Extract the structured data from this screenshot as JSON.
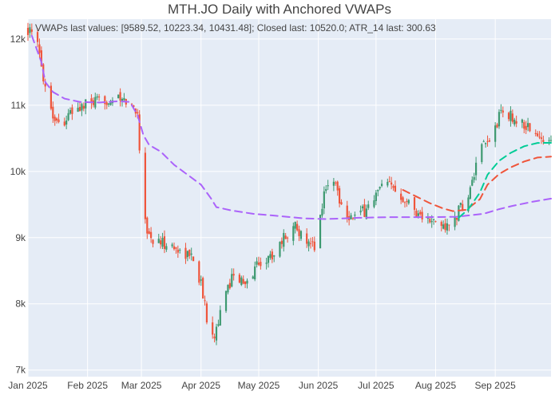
{
  "chart_data": {
    "type": "candlestick",
    "title": "MTH.JO Daily with Anchored VWAPs",
    "annotation": "VWAPs last values: [9589.52, 10223.34, 10431.48]; Closed last: 10520.0; ATR_14 last: 300.63",
    "xlabel": "",
    "ylabel": "",
    "x_range": [
      "2025-01-01",
      "2025-09-30"
    ],
    "y_range": [
      6900,
      12300
    ],
    "y_ticks": [
      {
        "value": 7000,
        "label": "7k"
      },
      {
        "value": 8000,
        "label": "8k"
      },
      {
        "value": 9000,
        "label": "9k"
      },
      {
        "value": 10000,
        "label": "10k"
      },
      {
        "value": 11000,
        "label": "11k"
      },
      {
        "value": 12000,
        "label": "12k"
      }
    ],
    "x_ticks": [
      {
        "date": "2025-01-01",
        "label": "Jan 2025"
      },
      {
        "date": "2025-02-01",
        "label": "Feb 2025"
      },
      {
        "date": "2025-03-01",
        "label": "Mar 2025"
      },
      {
        "date": "2025-04-01",
        "label": "Apr 2025"
      },
      {
        "date": "2025-05-01",
        "label": "May 2025"
      },
      {
        "date": "2025-06-01",
        "label": "Jun 2025"
      },
      {
        "date": "2025-07-01",
        "label": "Jul 2025"
      },
      {
        "date": "2025-08-01",
        "label": "Aug 2025"
      },
      {
        "date": "2025-09-01",
        "label": "Sep 2025"
      }
    ],
    "grid": true,
    "legend": "none",
    "colors": {
      "increasing": "#3D9970",
      "decreasing": "#EF553B",
      "plot_bg": "#E5ECF6",
      "grid": "#FFFFFF",
      "vwap_1": "#AB63FA",
      "vwap_2": "#EF553B",
      "vwap_3": "#00CC96"
    },
    "close_points": [
      [
        "2025-01-01",
        12150
      ],
      [
        "2025-01-06",
        11900
      ],
      [
        "2025-01-10",
        11300
      ],
      [
        "2025-01-14",
        10850
      ],
      [
        "2025-01-18",
        10700
      ],
      [
        "2025-01-24",
        10900
      ],
      [
        "2025-01-31",
        11000
      ],
      [
        "2025-02-07",
        11050
      ],
      [
        "2025-02-14",
        11100
      ],
      [
        "2025-02-21",
        11050
      ],
      [
        "2025-02-27",
        10900
      ],
      [
        "2025-03-01",
        9800
      ],
      [
        "2025-03-04",
        9100
      ],
      [
        "2025-03-07",
        8950
      ],
      [
        "2025-03-14",
        8900
      ],
      [
        "2025-03-21",
        8800
      ],
      [
        "2025-03-28",
        8700
      ],
      [
        "2025-04-01",
        8300
      ],
      [
        "2025-04-04",
        7800
      ],
      [
        "2025-04-08",
        7550
      ],
      [
        "2025-04-12",
        7950
      ],
      [
        "2025-04-18",
        8500
      ],
      [
        "2025-04-24",
        8250
      ],
      [
        "2025-04-30",
        8600
      ],
      [
        "2025-05-07",
        8700
      ],
      [
        "2025-05-14",
        9000
      ],
      [
        "2025-05-21",
        9200
      ],
      [
        "2025-05-25",
        8850
      ],
      [
        "2025-05-31",
        8900
      ],
      [
        "2025-06-04",
        9700
      ],
      [
        "2025-06-09",
        9900
      ],
      [
        "2025-06-14",
        9400
      ],
      [
        "2025-06-19",
        9300
      ],
      [
        "2025-06-25",
        9400
      ],
      [
        "2025-06-30",
        9600
      ],
      [
        "2025-07-05",
        9800
      ],
      [
        "2025-07-10",
        9750
      ],
      [
        "2025-07-16",
        9600
      ],
      [
        "2025-07-22",
        9400
      ],
      [
        "2025-07-28",
        9250
      ],
      [
        "2025-08-03",
        9200
      ],
      [
        "2025-08-08",
        9150
      ],
      [
        "2025-08-13",
        9400
      ],
      [
        "2025-08-18",
        9600
      ],
      [
        "2025-08-24",
        10300
      ],
      [
        "2025-08-30",
        10500
      ],
      [
        "2025-09-04",
        10900
      ],
      [
        "2025-09-08",
        10850
      ],
      [
        "2025-09-13",
        10750
      ],
      [
        "2025-09-19",
        10650
      ],
      [
        "2025-09-25",
        10450
      ],
      [
        "2025-09-30",
        10520
      ]
    ],
    "anchored_vwaps": [
      {
        "anchor": "2025-01-03",
        "last_value": 9589.52,
        "points": [
          [
            "2025-01-03",
            12050
          ],
          [
            "2025-01-08",
            11650
          ],
          [
            "2025-01-10",
            11350
          ],
          [
            "2025-01-14",
            11200
          ],
          [
            "2025-01-20",
            11100
          ],
          [
            "2025-01-28",
            11050
          ],
          [
            "2025-02-07",
            11040
          ],
          [
            "2025-02-17",
            11060
          ],
          [
            "2025-02-23",
            11050
          ],
          [
            "2025-02-27",
            10850
          ],
          [
            "2025-03-02",
            10550
          ],
          [
            "2025-03-05",
            10400
          ],
          [
            "2025-03-11",
            10300
          ],
          [
            "2025-03-18",
            10100
          ],
          [
            "2025-03-25",
            9950
          ],
          [
            "2025-04-01",
            9800
          ],
          [
            "2025-04-06",
            9600
          ],
          [
            "2025-04-09",
            9460
          ],
          [
            "2025-04-17",
            9410
          ],
          [
            "2025-04-28",
            9360
          ],
          [
            "2025-05-10",
            9330
          ],
          [
            "2025-05-25",
            9290
          ],
          [
            "2025-06-05",
            9280
          ],
          [
            "2025-06-22",
            9300
          ],
          [
            "2025-07-09",
            9310
          ],
          [
            "2025-07-29",
            9310
          ],
          [
            "2025-08-12",
            9315
          ],
          [
            "2025-08-26",
            9360
          ],
          [
            "2025-09-03",
            9430
          ],
          [
            "2025-09-10",
            9480
          ],
          [
            "2025-09-20",
            9540
          ],
          [
            "2025-09-30",
            9589.52
          ]
        ]
      },
      {
        "anchor": "2025-07-15",
        "last_value": 10223.34,
        "points": [
          [
            "2025-07-15",
            9720
          ],
          [
            "2025-07-22",
            9620
          ],
          [
            "2025-07-29",
            9520
          ],
          [
            "2025-08-05",
            9440
          ],
          [
            "2025-08-10",
            9400
          ],
          [
            "2025-08-17",
            9420
          ],
          [
            "2025-08-24",
            9580
          ],
          [
            "2025-08-28",
            9800
          ],
          [
            "2025-09-03",
            9960
          ],
          [
            "2025-09-09",
            10060
          ],
          [
            "2025-09-16",
            10150
          ],
          [
            "2025-09-23",
            10210
          ],
          [
            "2025-09-30",
            10223.34
          ]
        ]
      },
      {
        "anchor": "2025-08-13",
        "last_value": 10431.48,
        "points": [
          [
            "2025-08-13",
            9300
          ],
          [
            "2025-08-18",
            9430
          ],
          [
            "2025-08-24",
            9680
          ],
          [
            "2025-08-28",
            9950
          ],
          [
            "2025-09-03",
            10160
          ],
          [
            "2025-09-09",
            10280
          ],
          [
            "2025-09-16",
            10380
          ],
          [
            "2025-09-23",
            10430
          ],
          [
            "2025-09-30",
            10431.48
          ]
        ]
      }
    ]
  }
}
